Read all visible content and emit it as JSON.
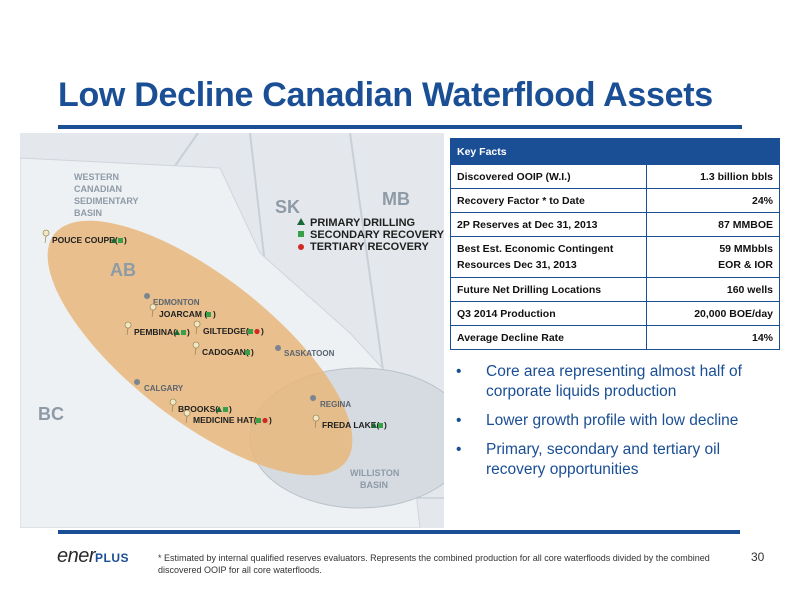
{
  "title": "Low Decline Canadian Waterflood Assets",
  "map": {
    "regions": {
      "wcsb": [
        "WESTERN",
        "CANADIAN",
        "SEDIMENTARY",
        "BASIN"
      ],
      "sk": "SK",
      "mb": "MB",
      "ab": "AB",
      "bc": "BC",
      "williston": [
        "WILLISTON",
        "BASIN"
      ]
    },
    "legend": {
      "primary": "PRIMARY DRILLING",
      "secondary": "SECONDARY RECOVERY",
      "tertiary": "TERTIARY RECOVERY"
    },
    "cities": {
      "edmonton": "EDMONTON",
      "saskatoon": "SASKATOON",
      "calgary": "CALGARY",
      "regina": "REGINA"
    },
    "fields": {
      "pouce_coupe": "POUCE COUPE(",
      "joarcam": "JOARCAM (",
      "pembina": "PEMBINA(",
      "giltedge": "GILTEDGE(",
      "cadogan": "CADOGAN(",
      "brooks": "BROOKS(",
      "medicine_hat": "MEDICINE HAT(",
      "freda_lake": "FREDA LAKE("
    },
    "colors": {
      "primary": "#1a6a36",
      "secondary": "#3aa048",
      "tertiary": "#d22a22",
      "ellipse": "#e7b77a"
    }
  },
  "key_facts": {
    "header": "Key Facts",
    "rows": [
      {
        "label": "Discovered OOIP (W.I.)",
        "value": "1.3 billion bbls"
      },
      {
        "label": "Recovery Factor * to Date",
        "value": "24%"
      },
      {
        "label": "2P Reserves  at Dec 31, 2013",
        "value": "87 MMBOE"
      },
      {
        "label": "Best Est. Economic Contingent",
        "label2": "Resources Dec 31, 2013",
        "value": "59 MMbbls",
        "value2": "EOR & IOR"
      },
      {
        "label": "Future Net Drilling Locations",
        "value": "160 wells"
      },
      {
        "label": "Q3 2014 Production",
        "value": "20,000 BOE/day"
      },
      {
        "label": "Average Decline Rate",
        "value": "14%"
      }
    ]
  },
  "bullets": [
    "Core area representing almost half of corporate liquids production",
    "Lower growth profile with low decline",
    "Primary, secondary and tertiary oil recovery opportunities"
  ],
  "bullet_symbol": "•",
  "footer": {
    "logo_ener": "ener",
    "logo_plus": "PLUS",
    "footnote": "* Estimated by internal qualified reserves evaluators. Represents the combined production for all core waterfloods divided by the combined discovered OOIP for all core waterfloods.",
    "page_number": "30"
  }
}
